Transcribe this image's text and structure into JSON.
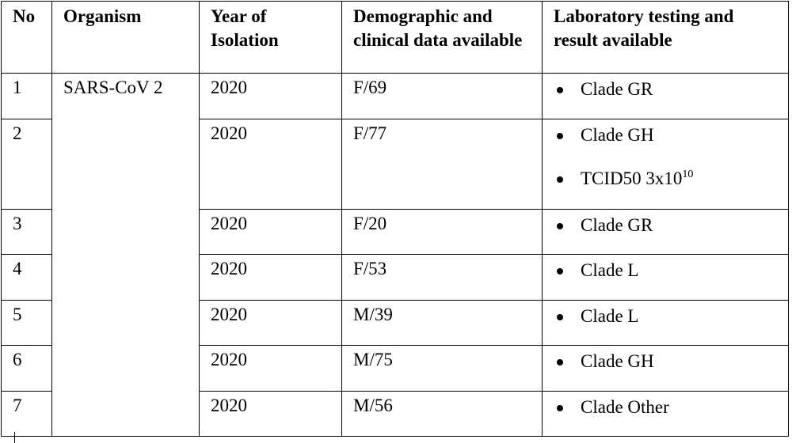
{
  "headers": {
    "no": "No",
    "organism": "Organism",
    "year": "Year of Isolation",
    "demographic": "Demographic and clinical data available",
    "laboratory": "Laboratory  testing and result available"
  },
  "organism": "SARS-CoV 2",
  "rows": [
    {
      "no": "1",
      "year": "2020",
      "demo": "F/69",
      "results": [
        {
          "text": "Clade GR",
          "sup": ""
        }
      ]
    },
    {
      "no": "2",
      "year": "2020",
      "demo": "F/77",
      "results": [
        {
          "text": "Clade GH",
          "sup": ""
        },
        {
          "text": "TCID50  3x10",
          "sup": "10"
        }
      ]
    },
    {
      "no": "3",
      "year": "2020",
      "demo": "F/20",
      "results": [
        {
          "text": "Clade GR",
          "sup": ""
        }
      ]
    },
    {
      "no": "4",
      "year": "2020",
      "demo": "F/53",
      "results": [
        {
          "text": "Clade L",
          "sup": ""
        }
      ]
    },
    {
      "no": "5",
      "year": "2020",
      "demo": "M/39",
      "results": [
        {
          "text": "Clade L",
          "sup": ""
        }
      ]
    },
    {
      "no": "6",
      "year": "2020",
      "demo": "M/75",
      "results": [
        {
          "text": "Clade GH",
          "sup": ""
        }
      ]
    },
    {
      "no": "7",
      "year": "2020",
      "demo": "M/56",
      "results": [
        {
          "text": "Clade Other",
          "sup": ""
        }
      ]
    }
  ]
}
